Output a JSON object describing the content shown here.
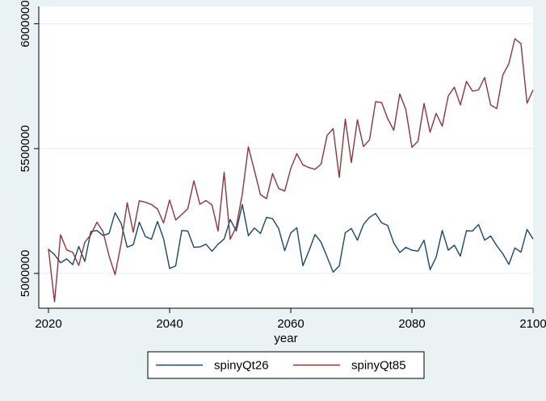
{
  "chart_data": {
    "type": "line",
    "title": "",
    "xlabel": "year",
    "ylabel": "",
    "xlim": [
      2020,
      2100
    ],
    "ylim": [
      4880000,
      6050000
    ],
    "x_ticks": [
      2020,
      2040,
      2060,
      2080,
      2100
    ],
    "y_ticks": [
      5000000,
      5500000,
      6000000
    ],
    "x_tick_labels": [
      "2020",
      "2040",
      "2060",
      "2080",
      "2100"
    ],
    "y_tick_labels": [
      "5000000",
      "5500000",
      "6000000"
    ],
    "grid": "horizontal",
    "legend_position": "bottom",
    "colors": {
      "plot_background": "#ffffff",
      "outer_background": "#eaf2f3",
      "grid": "#e3ecef",
      "axis": "#000000"
    },
    "x": [
      2020,
      2021,
      2022,
      2023,
      2024,
      2025,
      2026,
      2027,
      2028,
      2029,
      2030,
      2031,
      2032,
      2033,
      2034,
      2035,
      2036,
      2037,
      2038,
      2039,
      2040,
      2041,
      2042,
      2043,
      2044,
      2045,
      2046,
      2047,
      2048,
      2049,
      2050,
      2051,
      2052,
      2053,
      2054,
      2055,
      2056,
      2057,
      2058,
      2059,
      2060,
      2061,
      2062,
      2063,
      2064,
      2065,
      2066,
      2067,
      2068,
      2069,
      2070,
      2071,
      2072,
      2073,
      2074,
      2075,
      2076,
      2077,
      2078,
      2079,
      2080,
      2081,
      2082,
      2083,
      2084,
      2085,
      2086,
      2087,
      2088,
      2089,
      2090,
      2091,
      2092,
      2093,
      2094,
      2095,
      2096,
      2097,
      2098,
      2099,
      2100
    ],
    "series": [
      {
        "name": "spinyQt26",
        "color": "#1a476f",
        "values": [
          5097000,
          5075000,
          5043000,
          5058000,
          5035000,
          5108000,
          5048000,
          5168000,
          5172000,
          5152000,
          5160000,
          5243000,
          5200000,
          5105000,
          5115000,
          5205000,
          5148000,
          5137000,
          5208000,
          5139000,
          5020000,
          5030000,
          5172000,
          5170000,
          5105000,
          5106000,
          5117000,
          5089000,
          5117000,
          5138000,
          5216000,
          5170000,
          5276000,
          5151000,
          5182000,
          5160000,
          5225000,
          5219000,
          5180000,
          5091000,
          5162000,
          5183000,
          5031000,
          5090000,
          5156000,
          5125000,
          5066000,
          5005000,
          5030000,
          5163000,
          5180000,
          5133000,
          5196000,
          5225000,
          5240000,
          5203000,
          5192000,
          5122000,
          5084000,
          5104000,
          5093000,
          5089000,
          5133000,
          5015000,
          5065000,
          5172000,
          5093000,
          5113000,
          5069000,
          5171000,
          5170000,
          5196000,
          5133000,
          5150000,
          5111000,
          5079000,
          5036000,
          5102000,
          5085000,
          5176000,
          5138000
        ]
      },
      {
        "name": "spinyQt85",
        "color": "#90353b",
        "values": [
          5098000,
          4886000,
          5155000,
          5094000,
          5085000,
          5032000,
          5125000,
          5155000,
          5205000,
          5168000,
          5070000,
          4995000,
          5120000,
          5283000,
          5165000,
          5291000,
          5285000,
          5276000,
          5258000,
          5202000,
          5294000,
          5214000,
          5236000,
          5259000,
          5371000,
          5277000,
          5292000,
          5274000,
          5170000,
          5405000,
          5137000,
          5187000,
          5318000,
          5507000,
          5412000,
          5315000,
          5300000,
          5400000,
          5340000,
          5330000,
          5420000,
          5480000,
          5435000,
          5424000,
          5417000,
          5438000,
          5553000,
          5580000,
          5385000,
          5618000,
          5444000,
          5615000,
          5508000,
          5535000,
          5688000,
          5684000,
          5620000,
          5573000,
          5719000,
          5656000,
          5505000,
          5530000,
          5681000,
          5566000,
          5641000,
          5590000,
          5711000,
          5746000,
          5675000,
          5769000,
          5730000,
          5735000,
          5785000,
          5675000,
          5660000,
          5795000,
          5840000,
          5940000,
          5920000,
          5682000,
          5735000
        ]
      }
    ]
  }
}
